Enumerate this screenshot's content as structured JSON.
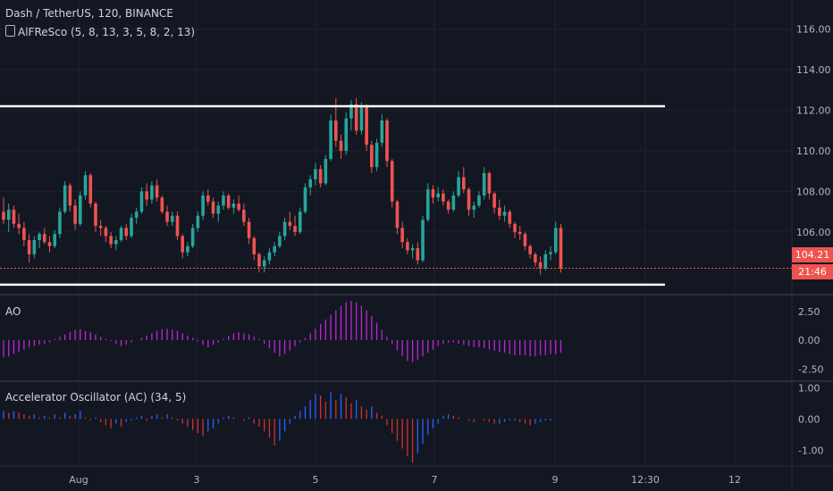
{
  "header": {
    "title": "Dash / TetherUS, 120, BINANCE",
    "indicator_icon": "eye-icon",
    "indicator": "AlFReSco (5, 8, 13, 3, 5, 8, 2, 13)"
  },
  "colors": {
    "background": "#131722",
    "up": "#26a69a",
    "down": "#ef5350",
    "ao": "#c026d3",
    "ac_up": "#2962ff",
    "ac_down": "#d32f2f",
    "channel": "#ffffff",
    "price_badge": "#ef5350"
  },
  "price_axis": {
    "ticks": [
      "116.00",
      "114.00",
      "112.00",
      "110.00",
      "108.00",
      "106.00"
    ],
    "current_price": "104.21",
    "countdown": "21:46"
  },
  "ao_pane": {
    "title": "AO",
    "ticks": [
      "2.50",
      "0.00",
      "-2.50"
    ]
  },
  "ac_pane": {
    "title": "Accelerator Oscillator (AC) (34, 5)",
    "ticks": [
      "1.00",
      "0.00",
      "-1.00"
    ]
  },
  "time_axis": {
    "labels": [
      "Aug",
      "3",
      "5",
      "7",
      "9",
      "12:30",
      "12"
    ]
  },
  "chart_data": [
    {
      "type": "candlestick",
      "title": "Dash / TetherUS, 120, BINANCE",
      "ylim": [
        103,
        117
      ],
      "ohlc_points": [
        [
          107.0,
          107.7,
          106.4,
          106.6
        ],
        [
          106.6,
          107.4,
          106.0,
          107.1
        ],
        [
          107.1,
          107.3,
          106.2,
          106.4
        ],
        [
          106.4,
          106.9,
          105.9,
          106.2
        ],
        [
          106.2,
          106.5,
          105.3,
          105.6
        ],
        [
          105.6,
          105.9,
          104.5,
          104.9
        ],
        [
          104.9,
          105.8,
          104.7,
          105.6
        ],
        [
          105.6,
          106.0,
          105.2,
          105.9
        ],
        [
          105.9,
          106.2,
          105.4,
          105.5
        ],
        [
          105.5,
          105.8,
          105.0,
          105.3
        ],
        [
          105.3,
          106.1,
          105.2,
          105.9
        ],
        [
          105.9,
          107.2,
          105.7,
          107.0
        ],
        [
          107.0,
          108.5,
          106.9,
          108.3
        ],
        [
          108.3,
          108.4,
          107.0,
          107.3
        ],
        [
          107.3,
          107.6,
          106.1,
          106.4
        ],
        [
          106.4,
          108.0,
          106.3,
          107.8
        ],
        [
          107.8,
          109.0,
          107.6,
          108.8
        ],
        [
          108.8,
          108.9,
          107.2,
          107.4
        ],
        [
          107.4,
          107.5,
          106.0,
          106.3
        ],
        [
          106.3,
          106.6,
          105.8,
          106.2
        ],
        [
          106.2,
          106.3,
          105.5,
          105.8
        ],
        [
          105.8,
          106.0,
          105.2,
          105.4
        ],
        [
          105.4,
          105.8,
          105.1,
          105.6
        ],
        [
          105.6,
          106.3,
          105.5,
          106.2
        ],
        [
          106.2,
          106.4,
          105.6,
          105.8
        ],
        [
          105.8,
          106.9,
          105.7,
          106.7
        ],
        [
          106.7,
          107.2,
          106.4,
          107.0
        ],
        [
          107.0,
          108.2,
          106.9,
          108.0
        ],
        [
          108.0,
          108.4,
          107.3,
          107.6
        ],
        [
          107.6,
          108.5,
          107.4,
          108.3
        ],
        [
          108.3,
          108.6,
          107.5,
          107.7
        ],
        [
          107.7,
          107.8,
          106.9,
          107.0
        ],
        [
          107.0,
          107.3,
          106.3,
          106.5
        ],
        [
          106.5,
          107.0,
          106.3,
          106.8
        ],
        [
          106.8,
          107.0,
          105.6,
          105.8
        ],
        [
          105.8,
          105.9,
          104.7,
          105.0
        ],
        [
          105.0,
          105.5,
          104.8,
          105.3
        ],
        [
          105.3,
          106.4,
          105.2,
          106.2
        ],
        [
          106.2,
          107.0,
          106.0,
          106.8
        ],
        [
          106.8,
          108.0,
          106.6,
          107.8
        ],
        [
          107.8,
          108.1,
          107.3,
          107.5
        ],
        [
          107.5,
          107.7,
          106.7,
          106.9
        ],
        [
          106.9,
          107.5,
          106.5,
          107.3
        ],
        [
          107.3,
          108.0,
          107.1,
          107.8
        ],
        [
          107.8,
          107.9,
          107.1,
          107.2
        ],
        [
          107.2,
          107.6,
          106.9,
          107.4
        ],
        [
          107.4,
          107.8,
          107.0,
          107.1
        ],
        [
          107.1,
          107.4,
          106.3,
          106.5
        ],
        [
          106.5,
          106.7,
          105.4,
          105.7
        ],
        [
          105.7,
          105.8,
          104.6,
          104.9
        ],
        [
          104.9,
          105.0,
          104.0,
          104.3
        ],
        [
          104.3,
          104.8,
          104.0,
          104.6
        ],
        [
          104.6,
          105.2,
          104.4,
          105.0
        ],
        [
          105.0,
          105.5,
          104.8,
          105.3
        ],
        [
          105.3,
          106.0,
          105.2,
          105.8
        ],
        [
          105.8,
          106.7,
          105.6,
          106.5
        ],
        [
          106.5,
          107.0,
          106.1,
          106.3
        ],
        [
          106.3,
          106.8,
          105.8,
          106.0
        ],
        [
          106.0,
          107.2,
          105.9,
          107.0
        ],
        [
          107.0,
          108.4,
          106.9,
          108.2
        ],
        [
          108.2,
          108.8,
          107.8,
          108.6
        ],
        [
          108.6,
          109.4,
          108.3,
          109.1
        ],
        [
          109.1,
          109.3,
          108.2,
          108.4
        ],
        [
          108.4,
          109.8,
          108.3,
          109.6
        ],
        [
          109.6,
          111.8,
          109.5,
          111.5
        ],
        [
          111.5,
          112.6,
          110.2,
          110.5
        ],
        [
          110.5,
          110.8,
          109.6,
          110.0
        ],
        [
          110.0,
          111.9,
          109.8,
          111.6
        ],
        [
          111.6,
          112.5,
          111.0,
          112.3
        ],
        [
          112.3,
          112.6,
          110.8,
          111.0
        ],
        [
          111.0,
          112.4,
          110.8,
          112.2
        ],
        [
          112.2,
          112.3,
          110.0,
          110.3
        ],
        [
          110.3,
          110.5,
          108.9,
          109.2
        ],
        [
          109.2,
          110.6,
          109.0,
          110.4
        ],
        [
          110.4,
          111.8,
          110.2,
          111.5
        ],
        [
          111.5,
          111.6,
          109.2,
          109.5
        ],
        [
          109.5,
          109.6,
          107.2,
          107.5
        ],
        [
          107.5,
          107.6,
          105.9,
          106.2
        ],
        [
          106.2,
          106.5,
          105.2,
          105.5
        ],
        [
          105.5,
          105.7,
          104.9,
          105.1
        ],
        [
          105.1,
          105.4,
          104.7,
          105.2
        ],
        [
          105.2,
          105.5,
          104.4,
          104.6
        ],
        [
          104.6,
          106.8,
          104.5,
          106.6
        ],
        [
          106.6,
          108.4,
          106.5,
          108.1
        ],
        [
          108.1,
          108.3,
          107.4,
          107.7
        ],
        [
          107.7,
          108.2,
          107.5,
          107.9
        ],
        [
          107.9,
          108.1,
          107.3,
          107.5
        ],
        [
          107.5,
          107.6,
          106.9,
          107.1
        ],
        [
          107.1,
          108.0,
          107.0,
          107.8
        ],
        [
          107.8,
          109.0,
          107.7,
          108.7
        ],
        [
          108.7,
          109.2,
          107.9,
          108.1
        ],
        [
          108.1,
          108.2,
          106.8,
          107.1
        ],
        [
          107.1,
          107.5,
          106.7,
          107.3
        ],
        [
          107.3,
          108.0,
          107.2,
          107.8
        ],
        [
          107.8,
          109.2,
          107.6,
          108.9
        ],
        [
          108.9,
          109.0,
          107.6,
          107.9
        ],
        [
          107.9,
          108.0,
          106.9,
          107.2
        ],
        [
          107.2,
          107.6,
          106.6,
          106.8
        ],
        [
          106.8,
          107.3,
          106.5,
          107.0
        ],
        [
          107.0,
          107.1,
          106.2,
          106.4
        ],
        [
          106.4,
          106.5,
          105.7,
          106.0
        ],
        [
          106.0,
          106.3,
          105.6,
          105.9
        ],
        [
          105.9,
          106.0,
          105.1,
          105.3
        ],
        [
          105.3,
          105.4,
          104.7,
          104.9
        ],
        [
          104.9,
          105.0,
          104.3,
          104.5
        ],
        [
          104.5,
          104.8,
          103.9,
          104.2
        ],
        [
          104.2,
          105.1,
          104.1,
          104.9
        ],
        [
          104.9,
          105.3,
          104.6,
          105.0
        ],
        [
          105.0,
          106.5,
          104.9,
          106.2
        ],
        [
          106.2,
          106.4,
          104.0,
          104.2
        ]
      ],
      "horizontal_lines": [
        112.2,
        103.4
      ]
    },
    {
      "type": "bar",
      "title": "AO",
      "ylim": [
        -3.4,
        3.8
      ],
      "values": [
        -1.5,
        -1.4,
        -1.2,
        -1.0,
        -0.8,
        -0.6,
        -0.5,
        -0.4,
        -0.3,
        -0.2,
        0.1,
        0.3,
        0.5,
        0.7,
        0.9,
        0.95,
        0.8,
        0.7,
        0.5,
        0.3,
        0.1,
        -0.1,
        -0.3,
        -0.5,
        -0.4,
        -0.2,
        0.0,
        0.2,
        0.4,
        0.6,
        0.8,
        0.95,
        1.0,
        0.9,
        0.8,
        0.6,
        0.4,
        0.2,
        -0.1,
        -0.4,
        -0.6,
        -0.4,
        -0.2,
        0.1,
        0.4,
        0.6,
        0.7,
        0.6,
        0.5,
        0.3,
        0.1,
        -0.3,
        -0.7,
        -1.1,
        -1.4,
        -1.2,
        -0.9,
        -0.5,
        -0.2,
        0.2,
        0.6,
        1.0,
        1.4,
        1.8,
        2.2,
        2.6,
        3.0,
        3.3,
        3.4,
        3.3,
        3.0,
        2.6,
        2.1,
        1.5,
        0.9,
        0.3,
        -0.3,
        -0.9,
        -1.4,
        -1.8,
        -1.9,
        -1.7,
        -1.4,
        -1.1,
        -0.8,
        -0.5,
        -0.3,
        -0.2,
        -0.2,
        -0.3,
        -0.4,
        -0.5,
        -0.6,
        -0.6,
        -0.7,
        -0.8,
        -0.9,
        -1.0,
        -1.1,
        -1.2,
        -1.3,
        -1.3,
        -1.3,
        -1.4,
        -1.4,
        -1.3,
        -1.3,
        -1.2,
        -1.2,
        -1.1
      ]
    },
    {
      "type": "bar",
      "title": "Accelerator Oscillator (AC) (34, 5)",
      "ylim": [
        -1.45,
        1.15
      ],
      "values": [
        0.25,
        0.2,
        0.25,
        0.2,
        0.15,
        0.1,
        0.15,
        0.05,
        0.1,
        0.05,
        0.15,
        0.05,
        0.2,
        0.1,
        0.15,
        0.25,
        0.05,
        -0.05,
        0.05,
        -0.1,
        -0.2,
        -0.3,
        -0.15,
        -0.25,
        -0.1,
        -0.05,
        0.05,
        0.1,
        -0.05,
        0.1,
        0.15,
        0.05,
        0.15,
        0.05,
        -0.05,
        -0.15,
        -0.25,
        -0.35,
        -0.45,
        -0.55,
        -0.4,
        -0.3,
        -0.15,
        0.05,
        0.1,
        0.05,
        0.0,
        -0.05,
        0.05,
        -0.15,
        -0.25,
        -0.4,
        -0.6,
        -0.85,
        -0.7,
        -0.4,
        -0.15,
        0.1,
        0.25,
        0.4,
        0.6,
        0.8,
        0.75,
        0.55,
        0.85,
        0.6,
        0.8,
        0.7,
        0.5,
        0.6,
        0.4,
        0.3,
        0.4,
        0.2,
        0.1,
        -0.2,
        -0.45,
        -0.7,
        -0.95,
        -1.2,
        -1.4,
        -1.1,
        -0.8,
        -0.5,
        -0.3,
        -0.15,
        0.1,
        0.15,
        0.1,
        0.05,
        0.0,
        -0.05,
        -0.1,
        0.0,
        -0.05,
        -0.1,
        -0.15,
        -0.15,
        -0.1,
        -0.05,
        -0.05,
        -0.1,
        -0.15,
        -0.2,
        -0.15,
        -0.1,
        -0.05,
        -0.05,
        0.0,
        0.0
      ]
    }
  ]
}
